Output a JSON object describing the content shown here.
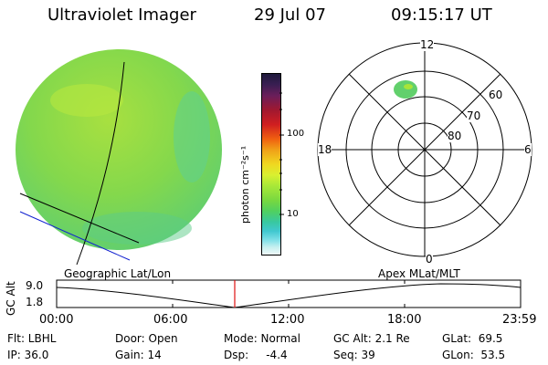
{
  "header": {
    "instrument": "Ultraviolet Imager",
    "date": "29 Jul 07",
    "time": "09:15:17 UT"
  },
  "colorbar": {
    "unit_label": "photon cm⁻²s⁻¹",
    "tick_100": "100",
    "tick_10": "10",
    "colors": [
      "#1e1a3c",
      "#3a1e52",
      "#6a1e5a",
      "#a01830",
      "#d01e20",
      "#f06010",
      "#f0a018",
      "#f0d820",
      "#d8f030",
      "#a8e838",
      "#78d840",
      "#50d060",
      "#38c8a0",
      "#40c8d0",
      "#80e0e8",
      "#c8f0f0",
      "#eef8f8"
    ]
  },
  "polar": {
    "mlt_top": "12",
    "mlt_left": "18",
    "mlt_right": "6",
    "mlt_bottom": "0",
    "lat_60": "60",
    "lat_70": "70",
    "lat_80": "80"
  },
  "labels": {
    "geographic": "Geographic Lat/Lon",
    "apex": "Apex MLat/MLT"
  },
  "altitude_plot": {
    "ylabel": "GC Alt",
    "ytick_high": "9.0",
    "ytick_low": "1.8",
    "xticks": [
      "00:00",
      "06:00",
      "12:00",
      "18:00",
      "23:59"
    ],
    "marker_color": "#e01010"
  },
  "info": {
    "filter": "Flt: LBHL",
    "ip": "IP: 36.0",
    "door": "Door: Open",
    "gain": "Gain: 14",
    "mode": "Mode: Normal",
    "dsp": "Dsp:     -4.4",
    "gc_alt": "GC Alt: 2.1 Re",
    "seq": "Seq: 39",
    "glat": "GLat:  69.5",
    "glon": "GLon:  53.5"
  }
}
